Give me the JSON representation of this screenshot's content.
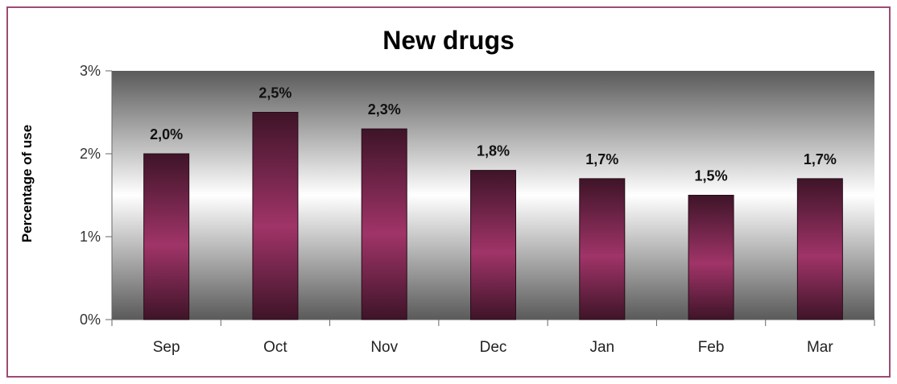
{
  "chart_data": {
    "type": "bar",
    "title": "New drugs",
    "xlabel": "",
    "ylabel": "Percentage of use",
    "categories": [
      "Sep",
      "Oct",
      "Nov",
      "Dec",
      "Jan",
      "Feb",
      "Mar"
    ],
    "values": [
      2.0,
      2.5,
      2.3,
      1.8,
      1.7,
      1.5,
      1.7
    ],
    "data_labels": [
      "2,0%",
      "2,5%",
      "2,3%",
      "1,8%",
      "1,7%",
      "1,5%",
      "1,7%"
    ],
    "ylim": [
      0,
      3
    ],
    "yticks": [
      0,
      1,
      2,
      3
    ],
    "ytick_labels": [
      "0%",
      "1%",
      "2%",
      "3%"
    ],
    "grid": false,
    "legend": "none",
    "colors": {
      "frame_border": "#9c4c74",
      "bar_dark": "#3e1428",
      "bar_light": "#a03468",
      "plot_top": "#5a5a5a",
      "plot_mid": "#ffffff",
      "plot_bottom": "#5a5a5a"
    }
  }
}
